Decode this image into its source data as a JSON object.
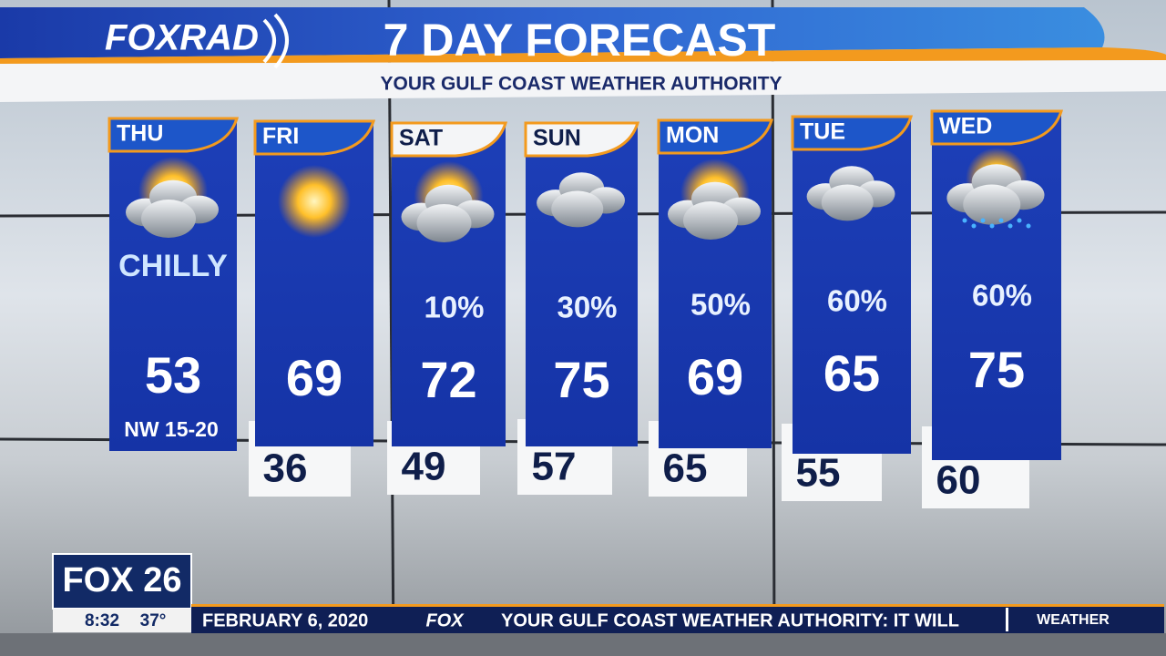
{
  "header": {
    "logo": "FOXRAD",
    "title": "7 DAY FORECAST",
    "subtitle": "YOUR GULF COAST WEATHER AUTHORITY"
  },
  "days": [
    {
      "day": "THU",
      "condition": "CHILLY",
      "high": 53,
      "wind": "NW 15-20"
    },
    {
      "day": "FRI",
      "high": 69,
      "low": 36
    },
    {
      "day": "SAT",
      "precip": "10%",
      "high": 72,
      "low": 49
    },
    {
      "day": "SUN",
      "precip": "30%",
      "high": 75,
      "low": 57
    },
    {
      "day": "MON",
      "precip": "50%",
      "high": 69,
      "low": 65
    },
    {
      "day": "TUE",
      "precip": "60%",
      "high": 65,
      "low": 55
    },
    {
      "day": "WED",
      "precip": "60%",
      "high": 75,
      "low": 60
    }
  ],
  "footer": {
    "station": "FOX 26",
    "time": "8:32",
    "temperature": "37°",
    "date": "FEBRUARY 6, 2020",
    "network": "FOX",
    "ticker": "YOUR GULF COAST WEATHER AUTHORITY: IT WILL",
    "section": "WEATHER"
  }
}
